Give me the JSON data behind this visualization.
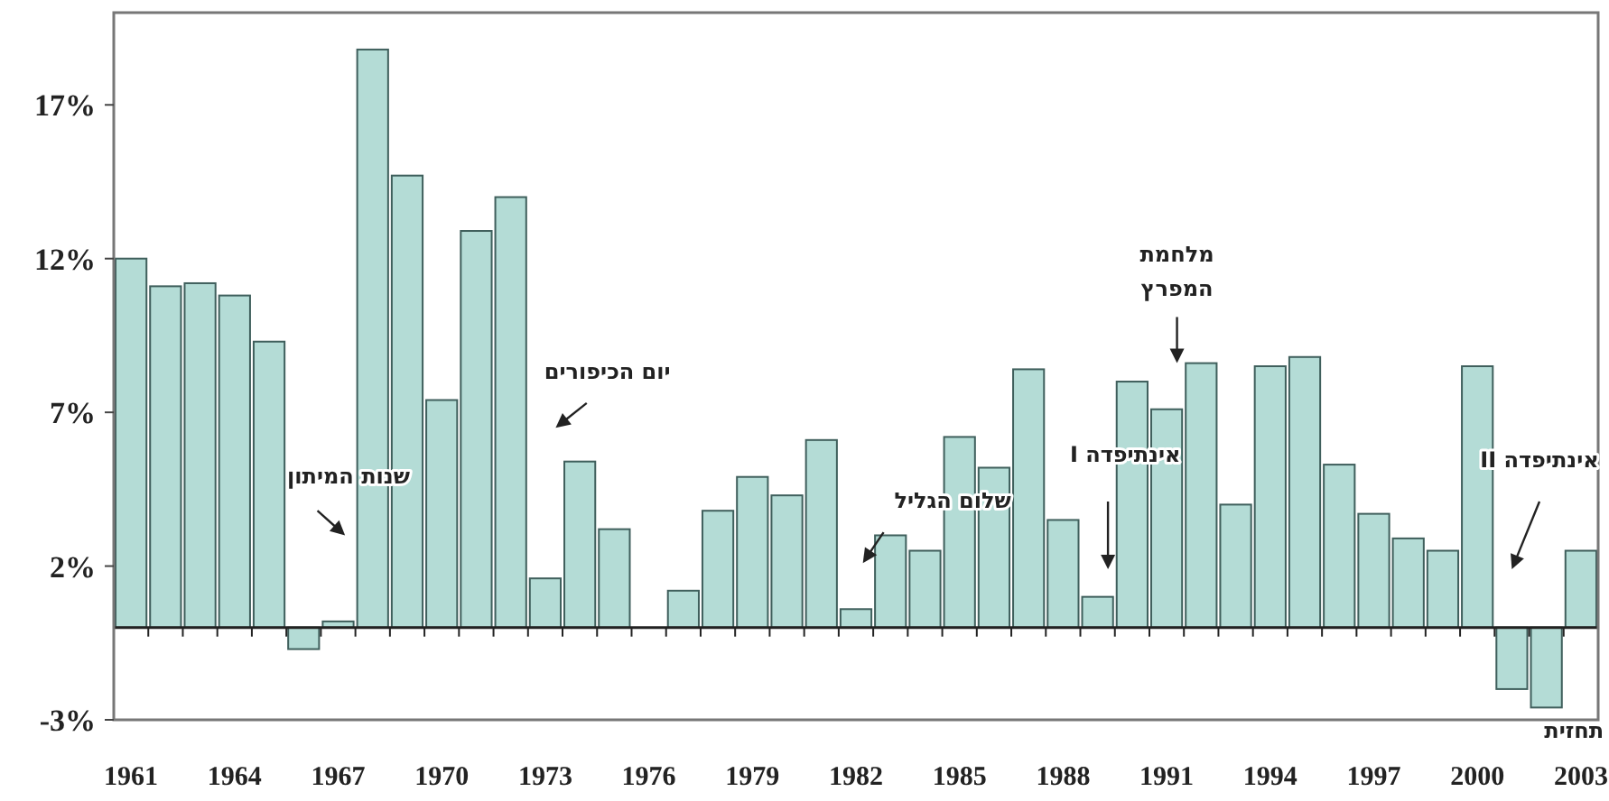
{
  "chart_data": {
    "type": "bar",
    "categories": [
      "1961",
      null,
      null,
      "1964",
      null,
      null,
      "1967",
      null,
      null,
      "1970",
      null,
      null,
      "1973",
      null,
      null,
      "1976",
      null,
      null,
      "1979",
      null,
      null,
      "1982",
      null,
      null,
      "1985",
      null,
      null,
      "1988",
      null,
      null,
      "1991",
      null,
      null,
      "1994",
      null,
      null,
      "1997",
      null,
      null,
      "2000",
      null,
      null,
      "2003"
    ],
    "values": [
      12,
      11.1,
      11.2,
      10.8,
      9.3,
      -0.7,
      0.2,
      18.8,
      14.7,
      7.4,
      12.9,
      14.0,
      1.6,
      5.4,
      3.2,
      0,
      1.2,
      3.8,
      4.9,
      4.3,
      6.1,
      0.6,
      3.0,
      2.5,
      6.2,
      5.2,
      8.4,
      3.5,
      1.0,
      8.0,
      7.1,
      8.6,
      4.0,
      8.5,
      8.8,
      5.3,
      3.7,
      2.9,
      2.5,
      8.5,
      -2.0,
      -2.6,
      2.5
    ],
    "color": "#b4dcd6",
    "ylim": [
      -3,
      20
    ],
    "yticks": [
      {
        "value": -3,
        "label": "-3%"
      },
      {
        "value": 2,
        "label": "2%"
      },
      {
        "value": 7,
        "label": "7%"
      },
      {
        "value": 12,
        "label": "12%"
      },
      {
        "value": 17,
        "label": "17%"
      }
    ],
    "grid": false,
    "annotations": [
      "שנות המיתון",
      "יום הכיפורים",
      "שלום הגליל",
      "אינתיפדה I",
      "מלחמת המפרץ",
      "אינתיפדה II",
      "תחזית"
    ]
  }
}
